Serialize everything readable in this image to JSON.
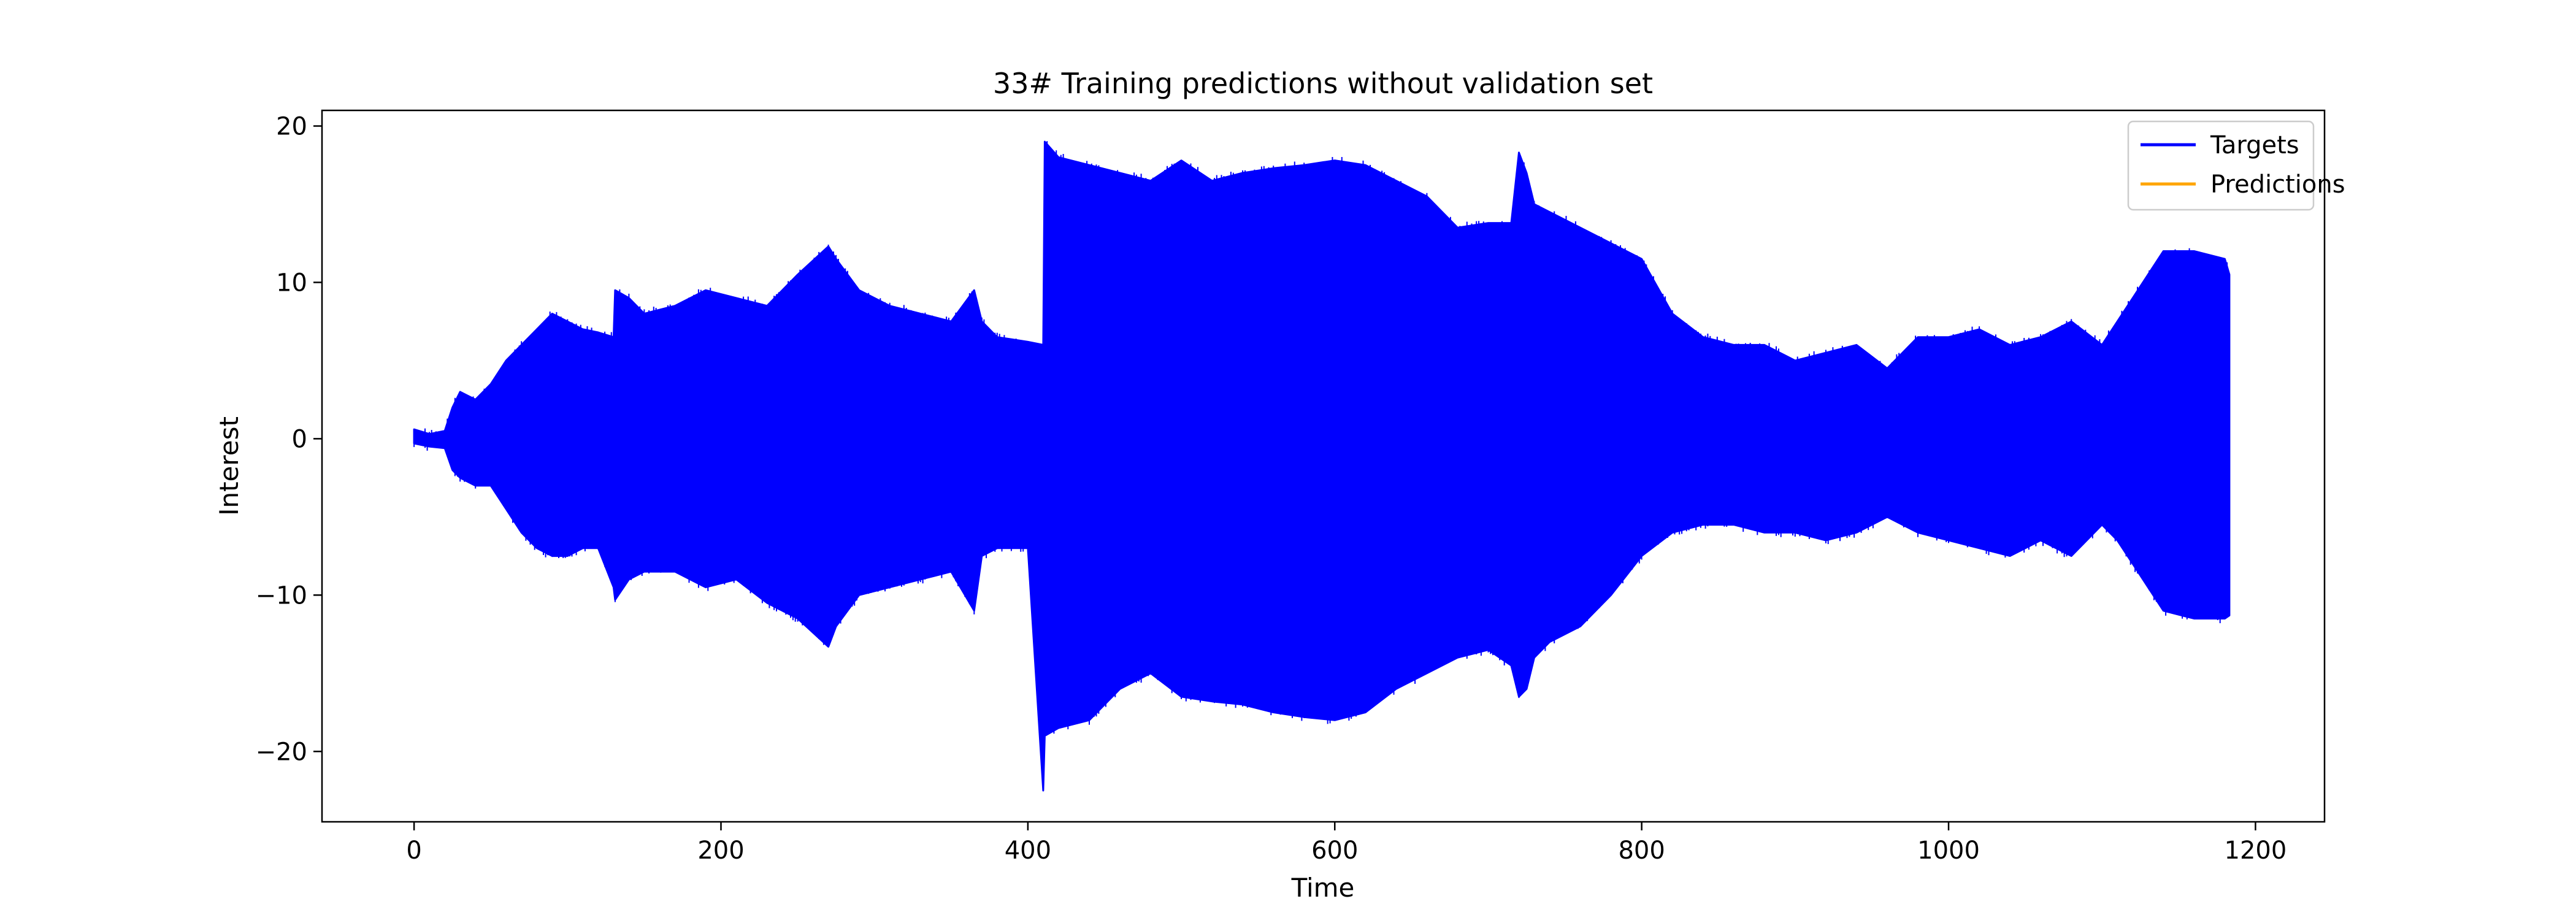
{
  "chart_data": {
    "type": "line",
    "title": "33# Training predictions without validation set",
    "xlabel": "Time",
    "ylabel": "Interest",
    "xlim": [
      -60,
      1245
    ],
    "ylim": [
      -24.5,
      21
    ],
    "xticks": [
      0,
      200,
      400,
      600,
      800,
      1000,
      1200
    ],
    "yticks": [
      -20,
      -10,
      0,
      10,
      20
    ],
    "xtick_labels": [
      "0",
      "200",
      "400",
      "600",
      "800",
      "1000",
      "1200"
    ],
    "ytick_labels": [
      "−20",
      "−10",
      "0",
      "10",
      "20"
    ],
    "grid": false,
    "legend": {
      "position": "top-right",
      "entries": [
        "Targets",
        "Predictions"
      ]
    },
    "colors": {
      "Targets": "#0000ff",
      "Predictions": "#ffa500"
    },
    "series": [
      {
        "name": "Targets",
        "envelope_x": [
          0,
          10,
          20,
          25,
          30,
          40,
          50,
          60,
          70,
          80,
          90,
          100,
          110,
          120,
          130,
          131,
          140,
          150,
          170,
          190,
          210,
          230,
          250,
          270,
          275,
          290,
          310,
          330,
          350,
          365,
          370,
          380,
          400,
          410,
          411,
          420,
          440,
          460,
          480,
          500,
          520,
          540,
          560,
          580,
          600,
          620,
          640,
          660,
          680,
          700,
          715,
          720,
          725,
          730,
          740,
          760,
          780,
          800,
          820,
          840,
          860,
          880,
          900,
          920,
          940,
          960,
          980,
          1000,
          1020,
          1040,
          1060,
          1080,
          1100,
          1110,
          1120,
          1140,
          1160,
          1180,
          1183
        ],
        "upper": [
          0.6,
          0.3,
          0.5,
          2.0,
          3.0,
          2.5,
          3.5,
          5.0,
          6.0,
          7.0,
          8.0,
          7.5,
          7.0,
          6.8,
          6.5,
          9.5,
          9.0,
          8.0,
          8.5,
          9.5,
          9.0,
          8.5,
          10.5,
          12.3,
          11.5,
          9.5,
          8.5,
          8.0,
          7.5,
          9.5,
          7.5,
          6.5,
          6.2,
          6.0,
          19.0,
          18.0,
          17.5,
          17.0,
          16.5,
          17.8,
          16.5,
          17.0,
          17.3,
          17.5,
          17.8,
          17.5,
          16.5,
          15.5,
          13.5,
          13.8,
          13.8,
          18.3,
          17.0,
          15.0,
          14.5,
          13.5,
          12.5,
          11.5,
          8.0,
          6.5,
          6.0,
          6.0,
          5.0,
          5.5,
          6.0,
          4.5,
          6.5,
          6.5,
          7.0,
          6.0,
          6.5,
          7.5,
          6.0,
          7.5,
          9.0,
          12.0,
          12.0,
          11.5,
          10.5
        ],
        "lower": [
          -0.3,
          -0.5,
          -0.6,
          -2.0,
          -2.5,
          -3.0,
          -3.0,
          -4.5,
          -6.0,
          -7.0,
          -7.5,
          -7.5,
          -7.0,
          -7.0,
          -9.5,
          -10.3,
          -9.0,
          -8.5,
          -8.5,
          -9.5,
          -9.0,
          -10.5,
          -11.5,
          -13.3,
          -12.0,
          -10.0,
          -9.5,
          -9.0,
          -8.5,
          -11.0,
          -7.5,
          -7.0,
          -7.0,
          -22.5,
          -19.0,
          -18.5,
          -18.0,
          -16.0,
          -15.0,
          -16.5,
          -16.8,
          -17.0,
          -17.5,
          -17.8,
          -18.0,
          -17.5,
          -16.0,
          -15.0,
          -14.0,
          -13.5,
          -14.5,
          -16.5,
          -16.0,
          -14.0,
          -13.0,
          -12.0,
          -10.0,
          -7.5,
          -6.0,
          -5.5,
          -5.5,
          -6.0,
          -6.0,
          -6.5,
          -6.0,
          -5.0,
          -6.0,
          -6.5,
          -7.0,
          -7.5,
          -6.5,
          -7.5,
          -5.5,
          -6.5,
          -8.0,
          -11.0,
          -11.5,
          -11.5,
          -11.3
        ]
      },
      {
        "name": "Predictions",
        "envelope_x": [],
        "upper": [],
        "lower": []
      }
    ]
  }
}
